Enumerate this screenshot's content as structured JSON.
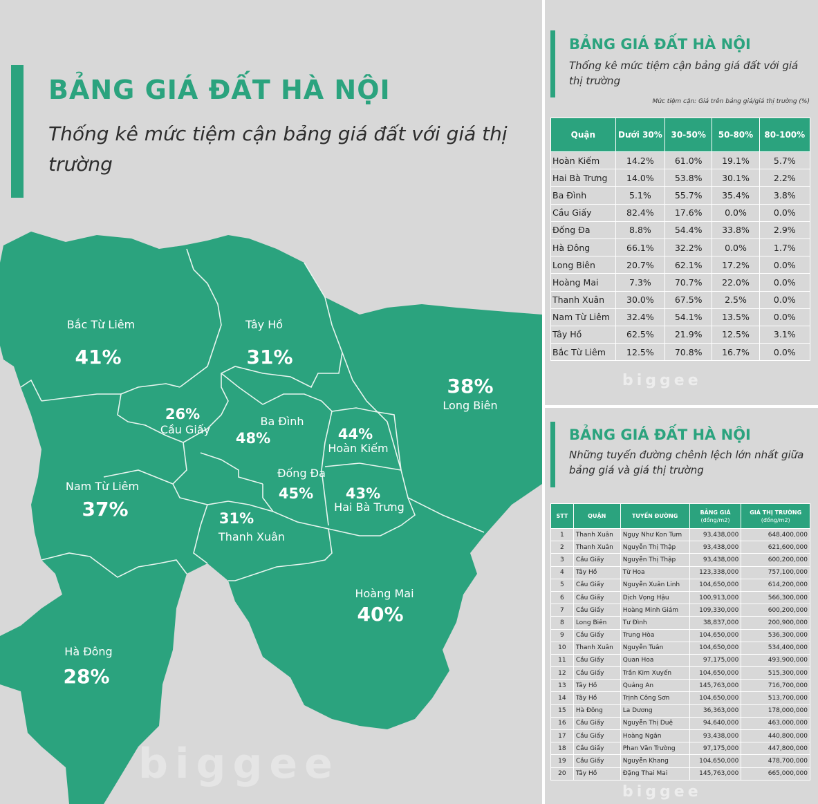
{
  "left": {
    "title": "BẢNG GIÁ ĐẤT HÀ NỘI",
    "subtitle": "Thống kê mức tiệm cận bảng giá đất với giá thị trường",
    "watermark": "biggee",
    "districts": [
      {
        "name": "Bắc Từ Liêm",
        "pct": "41%"
      },
      {
        "name": "Tây Hồ",
        "pct": "31%"
      },
      {
        "name": "Long Biên",
        "pct": "38%"
      },
      {
        "name": "Cầu Giấy",
        "pct": "26%"
      },
      {
        "name": "Ba Đình",
        "pct": "48%"
      },
      {
        "name": "Hoàn Kiếm",
        "pct": "44%"
      },
      {
        "name": "Nam Từ Liêm",
        "pct": "37%"
      },
      {
        "name": "Đống Đa",
        "pct": "45%"
      },
      {
        "name": "Hai Bà Trưng",
        "pct": "43%"
      },
      {
        "name": "Thanh Xuân",
        "pct": "31%"
      },
      {
        "name": "Hoàng Mai",
        "pct": "40%"
      },
      {
        "name": "Hà Đông",
        "pct": "28%"
      }
    ],
    "colors": {
      "map": "#2ba37e",
      "background": "#d8d8d8",
      "border": "#e8f5ef"
    }
  },
  "card1": {
    "title": "BẢNG GIÁ ĐẤT HÀ NỘI",
    "subtitle": "Thống kê mức tiệm cận bảng giá đất với giá thị trường",
    "note": "Mức tiệm cận: Giá trên bảng giá/giá thị trường (%)",
    "headers": [
      "Quận",
      "Dưới 30%",
      "30-50%",
      "50-80%",
      "80-100%"
    ],
    "rows": [
      [
        "Hoàn Kiếm",
        "14.2%",
        "61.0%",
        "19.1%",
        "5.7%"
      ],
      [
        "Hai Bà Trưng",
        "14.0%",
        "53.8%",
        "30.1%",
        "2.2%"
      ],
      [
        "Ba Đình",
        "5.1%",
        "55.7%",
        "35.4%",
        "3.8%"
      ],
      [
        "Cầu Giấy",
        "82.4%",
        "17.6%",
        "0.0%",
        "0.0%"
      ],
      [
        "Đống Đa",
        "8.8%",
        "54.4%",
        "33.8%",
        "2.9%"
      ],
      [
        "Hà Đông",
        "66.1%",
        "32.2%",
        "0.0%",
        "1.7%"
      ],
      [
        "Long Biên",
        "20.7%",
        "62.1%",
        "17.2%",
        "0.0%"
      ],
      [
        "Hoàng Mai",
        "7.3%",
        "70.7%",
        "22.0%",
        "0.0%"
      ],
      [
        "Thanh Xuân",
        "30.0%",
        "67.5%",
        "2.5%",
        "0.0%"
      ],
      [
        "Nam Từ Liêm",
        "32.4%",
        "54.1%",
        "13.5%",
        "0.0%"
      ],
      [
        "Tây Hồ",
        "62.5%",
        "21.9%",
        "12.5%",
        "3.1%"
      ],
      [
        "Bắc Từ Liêm",
        "12.5%",
        "70.8%",
        "16.7%",
        "0.0%"
      ]
    ],
    "watermark": "biggee"
  },
  "card2": {
    "title": "BẢNG GIÁ ĐẤT HÀ NỘI",
    "subtitle": "Những tuyến đường chênh lệch lớn nhất giữa bảng giá và giá thị trường",
    "headers": {
      "stt": "STT",
      "quan": "QUẬN",
      "duong": "TUYẾN ĐƯỜNG",
      "banggia": "BẢNG GIÁ",
      "banggia_unit": "(đồng/m2)",
      "thitruong": "GIÁ THỊ TRƯỜNG",
      "thitruong_unit": "(đồng/m2)"
    },
    "rows": [
      [
        "1",
        "Thanh Xuân",
        "Ngụy Như Kon Tum",
        "93,438,000",
        "648,400,000"
      ],
      [
        "2",
        "Thanh Xuân",
        "Nguyễn Thị Thập",
        "93,438,000",
        "621,600,000"
      ],
      [
        "3",
        "Cầu Giấy",
        "Nguyễn Thị Thập",
        "93,438,000",
        "600,200,000"
      ],
      [
        "4",
        "Tây Hồ",
        "Từ Hoa",
        "123,338,000",
        "757,100,000"
      ],
      [
        "5",
        "Cầu Giấy",
        "Nguyễn Xuân Linh",
        "104,650,000",
        "614,200,000"
      ],
      [
        "6",
        "Cầu Giấy",
        "Dịch Vọng Hậu",
        "100,913,000",
        "566,300,000"
      ],
      [
        "7",
        "Cầu Giấy",
        "Hoàng Minh Giám",
        "109,330,000",
        "600,200,000"
      ],
      [
        "8",
        "Long Biên",
        "Tư Đình",
        "38,837,000",
        "200,900,000"
      ],
      [
        "9",
        "Cầu Giấy",
        "Trung Hòa",
        "104,650,000",
        "536,300,000"
      ],
      [
        "10",
        "Thanh Xuân",
        "Nguyễn Tuân",
        "104,650,000",
        "534,400,000"
      ],
      [
        "11",
        "Cầu Giấy",
        "Quan Hoa",
        "97,175,000",
        "493,900,000"
      ],
      [
        "12",
        "Cầu Giấy",
        "Trần Kim Xuyến",
        "104,650,000",
        "515,300,000"
      ],
      [
        "13",
        "Tây Hồ",
        "Quảng An",
        "145,763,000",
        "716,700,000"
      ],
      [
        "14",
        "Tây Hồ",
        "Trịnh Công Sơn",
        "104,650,000",
        "513,700,000"
      ],
      [
        "15",
        "Hà Đông",
        "La Dương",
        "36,363,000",
        "178,000,000"
      ],
      [
        "16",
        "Cầu Giấy",
        "Nguyễn Thị Duệ",
        "94,640,000",
        "463,000,000"
      ],
      [
        "17",
        "Cầu Giấy",
        "Hoàng Ngân",
        "93,438,000",
        "440,800,000"
      ],
      [
        "18",
        "Cầu Giấy",
        "Phan Văn Trường",
        "97,175,000",
        "447,800,000"
      ],
      [
        "19",
        "Cầu Giấy",
        "Nguyễn Khang",
        "104,650,000",
        "478,700,000"
      ],
      [
        "20",
        "Tây Hồ",
        "Đặng Thai Mai",
        "145,763,000",
        "665,000,000"
      ]
    ],
    "watermark": "biggee"
  }
}
